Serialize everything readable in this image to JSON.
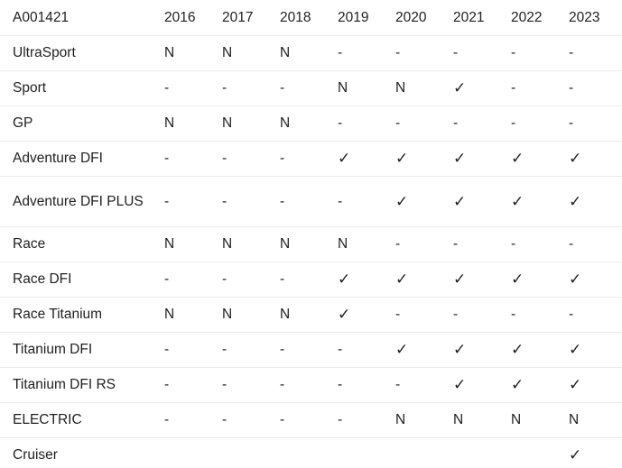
{
  "table": {
    "corner_label": "A001421",
    "years": [
      "2016",
      "2017",
      "2018",
      "2019",
      "2020",
      "2021",
      "2022",
      "2023"
    ],
    "rows": [
      {
        "name": "UltraSport",
        "values": [
          "N",
          "N",
          "N",
          "-",
          "-",
          "-",
          "-",
          "-"
        ]
      },
      {
        "name": "Sport",
        "values": [
          "-",
          "-",
          "-",
          "N",
          "N",
          "✓",
          "-",
          "-"
        ]
      },
      {
        "name": "GP",
        "values": [
          "N",
          "N",
          "N",
          "-",
          "-",
          "-",
          "-",
          "-"
        ]
      },
      {
        "name": "Adventure DFI",
        "values": [
          "-",
          "-",
          "-",
          "✓",
          "✓",
          "✓",
          "✓",
          "✓"
        ]
      },
      {
        "name": "Adventure DFI PLUS",
        "values": [
          "-",
          "-",
          "-",
          "-",
          "✓",
          "✓",
          "✓",
          "✓"
        ]
      },
      {
        "name": "Race",
        "values": [
          "N",
          "N",
          "N",
          "N",
          "-",
          "-",
          "-",
          "-"
        ]
      },
      {
        "name": "Race DFI",
        "values": [
          "-",
          "-",
          "-",
          "✓",
          "✓",
          "✓",
          "✓",
          "✓"
        ]
      },
      {
        "name": "Race Titanium",
        "values": [
          "N",
          "N",
          "N",
          "✓",
          "-",
          "-",
          "-",
          "-"
        ]
      },
      {
        "name": "Titanium DFI",
        "values": [
          "-",
          "-",
          "-",
          "-",
          "✓",
          "✓",
          "✓",
          "✓"
        ]
      },
      {
        "name": "Titanium DFI RS",
        "values": [
          "-",
          "-",
          "-",
          "-",
          "-",
          "✓",
          "✓",
          "✓"
        ]
      },
      {
        "name": "ELECTRIC",
        "values": [
          "-",
          "-",
          "-",
          "-",
          "N",
          "N",
          "N",
          "N"
        ]
      },
      {
        "name": "Cruiser",
        "values": [
          "",
          "",
          "",
          "",
          "",
          "",
          "",
          "✓"
        ]
      }
    ]
  }
}
